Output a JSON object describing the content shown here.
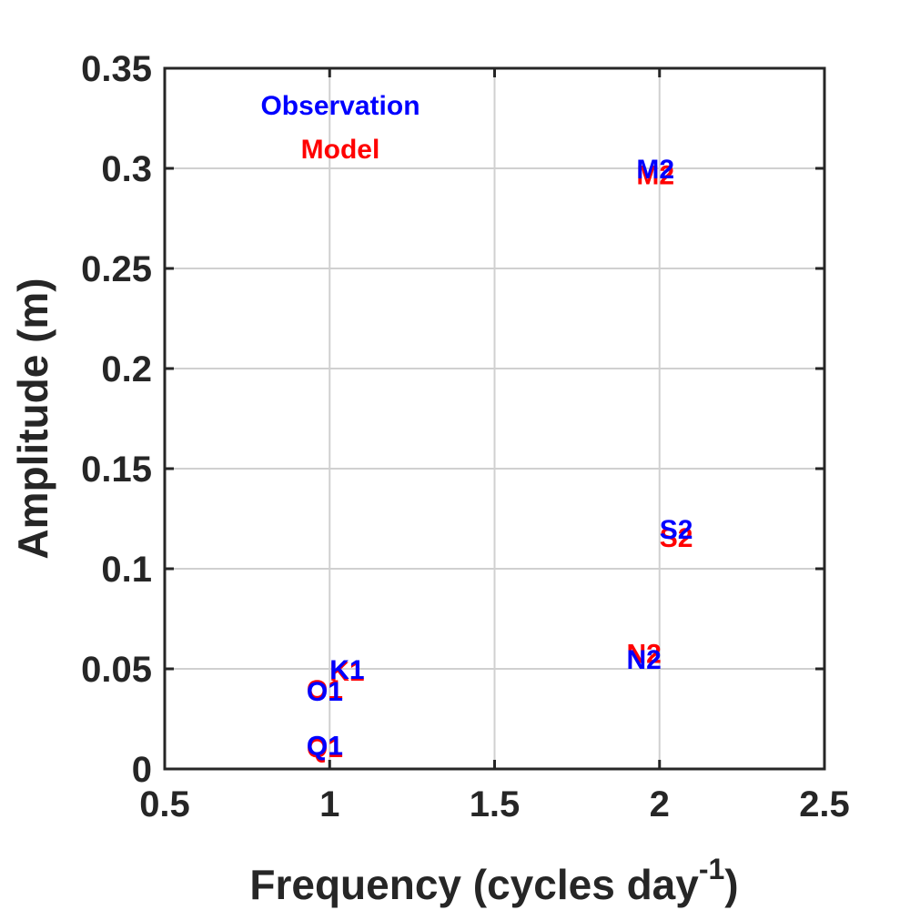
{
  "chart_data": {
    "type": "scatter",
    "xlabel": "Frequency (cycles day",
    "xlabel_sup": "-1",
    "xlabel_end": ")",
    "ylabel": "Amplitude (m)",
    "xlim": [
      0.5,
      2.5
    ],
    "ylim": [
      0,
      0.35
    ],
    "x_ticks": [
      "0.5",
      "1",
      "1.5",
      "2",
      "2.5"
    ],
    "y_ticks": [
      "0",
      "0.05",
      "0.1",
      "0.15",
      "0.2",
      "0.25",
      "0.3",
      "0.35"
    ],
    "grid": true,
    "legend_position": "top-left",
    "series": [
      {
        "name": "Model",
        "color": "#ff0000",
        "points": [
          {
            "label": "Q1",
            "x": 0.93,
            "y": 0.011
          },
          {
            "label": "O1",
            "x": 0.93,
            "y": 0.04
          },
          {
            "label": "K1",
            "x": 1.0,
            "y": 0.049
          },
          {
            "label": "N2",
            "x": 1.9,
            "y": 0.058
          },
          {
            "label": "M2",
            "x": 1.93,
            "y": 0.297
          },
          {
            "label": "S2",
            "x": 2.0,
            "y": 0.116
          }
        ]
      },
      {
        "name": "Observation",
        "color": "#0000ff",
        "points": [
          {
            "label": "Q1",
            "x": 0.93,
            "y": 0.012
          },
          {
            "label": "O1",
            "x": 0.93,
            "y": 0.039
          },
          {
            "label": "K1",
            "x": 1.0,
            "y": 0.05
          },
          {
            "label": "N2",
            "x": 1.9,
            "y": 0.055
          },
          {
            "label": "M2",
            "x": 1.93,
            "y": 0.3
          },
          {
            "label": "S2",
            "x": 2.0,
            "y": 0.12
          }
        ]
      }
    ]
  }
}
